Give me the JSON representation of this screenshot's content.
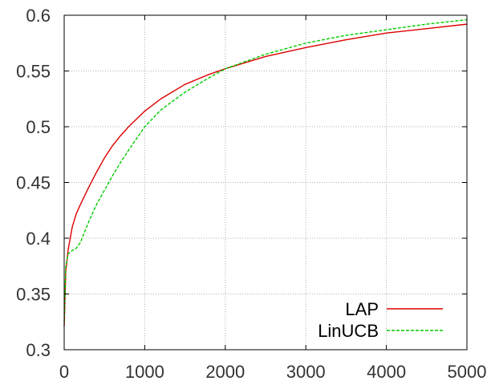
{
  "chart_data": {
    "type": "line",
    "title": "",
    "xlabel": "",
    "ylabel": "",
    "xlim": [
      0,
      5000
    ],
    "ylim": [
      0.3,
      0.6
    ],
    "xticks": [
      0,
      1000,
      2000,
      3000,
      4000,
      5000
    ],
    "yticks": [
      0.3,
      0.35,
      0.4,
      0.45,
      0.5,
      0.55,
      0.6
    ],
    "xtick_labels": [
      "0",
      "1000",
      "2000",
      "3000",
      "4000",
      "5000"
    ],
    "ytick_labels": [
      "0.3",
      "0.35",
      "0.4",
      "0.45",
      "0.5",
      "0.55",
      "0.6"
    ],
    "grid": true,
    "legend_position": "bottom-right",
    "series": [
      {
        "name": "LAP",
        "color": "#dd0000",
        "dash": "solid",
        "points": [
          [
            0,
            0.321
          ],
          [
            20,
            0.37
          ],
          [
            50,
            0.39
          ],
          [
            100,
            0.41
          ],
          [
            150,
            0.422
          ],
          [
            200,
            0.43
          ],
          [
            300,
            0.445
          ],
          [
            400,
            0.459
          ],
          [
            500,
            0.472
          ],
          [
            600,
            0.483
          ],
          [
            700,
            0.492
          ],
          [
            800,
            0.5
          ],
          [
            1000,
            0.514
          ],
          [
            1200,
            0.525
          ],
          [
            1500,
            0.538
          ],
          [
            1800,
            0.547
          ],
          [
            2000,
            0.552
          ],
          [
            2500,
            0.563
          ],
          [
            3000,
            0.571
          ],
          [
            3500,
            0.578
          ],
          [
            4000,
            0.584
          ],
          [
            4500,
            0.588
          ],
          [
            5000,
            0.592
          ]
        ]
      },
      {
        "name": "LinUCB",
        "color": "#00cc00",
        "dash": "dashed",
        "points": [
          [
            0,
            0.325
          ],
          [
            20,
            0.375
          ],
          [
            50,
            0.386
          ],
          [
            100,
            0.389
          ],
          [
            150,
            0.391
          ],
          [
            200,
            0.396
          ],
          [
            300,
            0.414
          ],
          [
            400,
            0.43
          ],
          [
            500,
            0.443
          ],
          [
            600,
            0.456
          ],
          [
            700,
            0.468
          ],
          [
            800,
            0.479
          ],
          [
            1000,
            0.5
          ],
          [
            1200,
            0.515
          ],
          [
            1500,
            0.531
          ],
          [
            1800,
            0.544
          ],
          [
            2000,
            0.552
          ],
          [
            2500,
            0.565
          ],
          [
            3000,
            0.575
          ],
          [
            3500,
            0.582
          ],
          [
            4000,
            0.587
          ],
          [
            4500,
            0.592
          ],
          [
            5000,
            0.596
          ]
        ]
      }
    ]
  }
}
